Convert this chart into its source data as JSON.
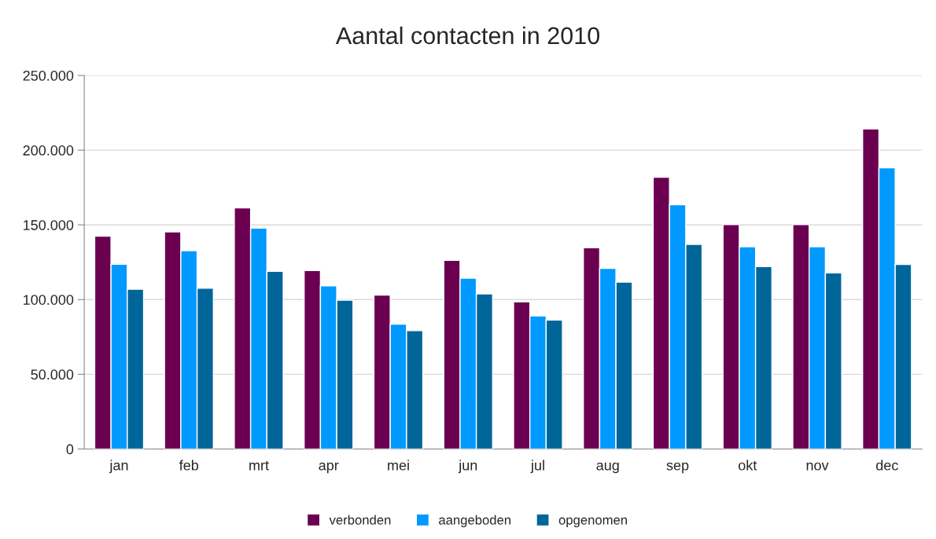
{
  "chart_data": {
    "type": "bar",
    "title": "Aantal contacten in 2010",
    "categories": [
      "jan",
      "feb",
      "mrt",
      "apr",
      "mei",
      "jun",
      "jul",
      "aug",
      "sep",
      "okt",
      "nov",
      "dec"
    ],
    "series": [
      {
        "name": "verbonden",
        "color": "#6b0050",
        "values": [
          142500,
          145300,
          161400,
          119500,
          103000,
          126300,
          98500,
          134700,
          181900,
          150200,
          150200,
          214200
        ]
      },
      {
        "name": "aangeboden",
        "color": "#0099ff",
        "values": [
          123600,
          132700,
          147900,
          109200,
          83500,
          114300,
          89100,
          120900,
          163500,
          135400,
          135400,
          188200
        ]
      },
      {
        "name": "opgenomen",
        "color": "#006699",
        "values": [
          106900,
          107600,
          118900,
          99600,
          79200,
          103800,
          86300,
          111700,
          136900,
          122100,
          117900,
          123500
        ]
      }
    ],
    "ylim": [
      0,
      250000
    ],
    "yticks": [
      {
        "value": 0,
        "label": "0"
      },
      {
        "value": 50000,
        "label": "50.000"
      },
      {
        "value": 100000,
        "label": "100.000"
      },
      {
        "value": 150000,
        "label": "150.000"
      },
      {
        "value": 200000,
        "label": "200.000"
      },
      {
        "value": 250000,
        "label": "250.000"
      }
    ],
    "grid": "y",
    "legend": "bottom"
  }
}
